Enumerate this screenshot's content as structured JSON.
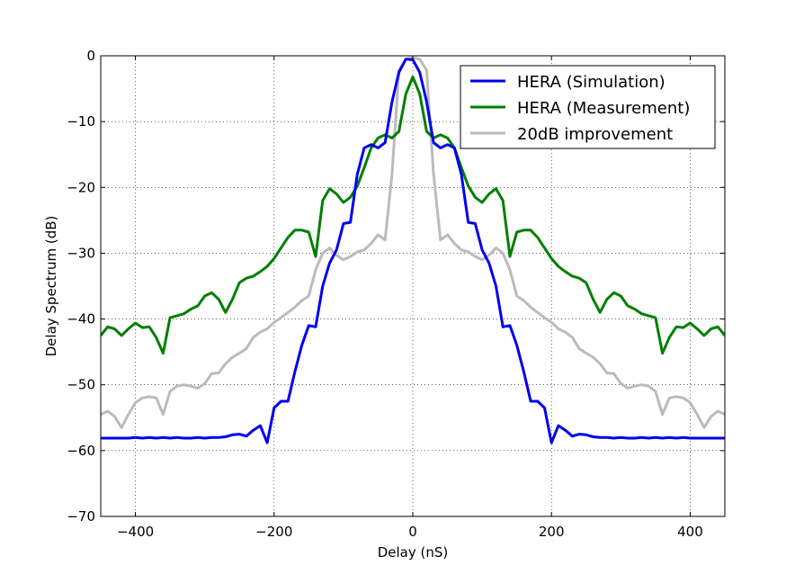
{
  "chart_data": {
    "type": "line",
    "title": "",
    "xlabel": "Delay (nS)",
    "ylabel": "Delay Spectrum (dB)",
    "xlim": [
      -450,
      450
    ],
    "ylim": [
      -70,
      0
    ],
    "xticks": [
      -400,
      -200,
      0,
      200,
      400
    ],
    "xtick_labels": [
      "−400",
      "−200",
      "0",
      "200",
      "400"
    ],
    "yticks": [
      0,
      -10,
      -20,
      -30,
      -40,
      -50,
      -60,
      -70
    ],
    "ytick_labels": [
      "0",
      "−10",
      "−20",
      "−30",
      "−40",
      "−50",
      "−60",
      "−70"
    ],
    "grid": true,
    "grid_style": "dotted",
    "legend_position": "top-right",
    "series": [
      {
        "name": "HERA (Simulation)",
        "color": "#0000ee",
        "x": [
          -450,
          -440,
          -430,
          -420,
          -410,
          -400,
          -390,
          -380,
          -370,
          -360,
          -350,
          -340,
          -330,
          -320,
          -310,
          -300,
          -290,
          -280,
          -270,
          -260,
          -250,
          -240,
          -230,
          -220,
          -210,
          -200,
          -190,
          -180,
          -170,
          -160,
          -150,
          -140,
          -130,
          -120,
          -110,
          -100,
          -90,
          -80,
          -70,
          -60,
          -50,
          -40,
          -30,
          -20,
          -10,
          0,
          10,
          20,
          30,
          40,
          50,
          60,
          70,
          80,
          90,
          100,
          110,
          120,
          130,
          140,
          150,
          160,
          170,
          180,
          190,
          200,
          210,
          220,
          230,
          240,
          250,
          260,
          270,
          280,
          290,
          300,
          310,
          320,
          330,
          340,
          350,
          360,
          370,
          380,
          390,
          400,
          410,
          420,
          430,
          440,
          450
        ],
        "y": [
          -58.1,
          -58.1,
          -58.1,
          -58.1,
          -58.1,
          -58.0,
          -58.1,
          -58.0,
          -58.1,
          -58.0,
          -58.1,
          -58.0,
          -58.1,
          -58.1,
          -58.0,
          -58.1,
          -58.0,
          -58.0,
          -57.9,
          -57.6,
          -57.5,
          -57.8,
          -56.9,
          -56.2,
          -58.8,
          -53.5,
          -52.5,
          -52.5,
          -48.0,
          -44.0,
          -41.0,
          -41.2,
          -35.0,
          -31.5,
          -29.5,
          -25.5,
          -25.3,
          -18.0,
          -14.0,
          -13.5,
          -14.0,
          -13.2,
          -7.0,
          -2.5,
          -0.5,
          -0.6,
          -2.5,
          -7.0,
          -13.2,
          -14.0,
          -13.5,
          -14.0,
          -18.0,
          -25.3,
          -25.5,
          -29.5,
          -31.5,
          -35.0,
          -41.2,
          -41.0,
          -44.0,
          -48.0,
          -52.5,
          -52.5,
          -53.5,
          -58.8,
          -56.2,
          -56.9,
          -57.8,
          -57.5,
          -57.6,
          -57.9,
          -58.0,
          -58.0,
          -58.1,
          -58.0,
          -58.1,
          -58.1,
          -58.0,
          -58.1,
          -58.0,
          -58.1,
          -58.0,
          -58.1,
          -58.0,
          -58.1,
          -58.1,
          -58.1,
          -58.1,
          -58.1,
          -58.1
        ]
      },
      {
        "name": "HERA (Measurement)",
        "color": "#007f00",
        "x": [
          -450,
          -440,
          -430,
          -420,
          -410,
          -400,
          -390,
          -380,
          -370,
          -360,
          -350,
          -340,
          -330,
          -320,
          -310,
          -300,
          -290,
          -280,
          -270,
          -260,
          -250,
          -240,
          -230,
          -220,
          -210,
          -200,
          -190,
          -180,
          -170,
          -160,
          -150,
          -140,
          -130,
          -120,
          -110,
          -100,
          -90,
          -80,
          -70,
          -60,
          -50,
          -40,
          -30,
          -20,
          -10,
          0,
          10,
          20,
          30,
          40,
          50,
          60,
          70,
          80,
          90,
          100,
          110,
          120,
          130,
          140,
          150,
          160,
          170,
          180,
          190,
          200,
          210,
          220,
          230,
          240,
          250,
          260,
          270,
          280,
          290,
          300,
          310,
          320,
          330,
          340,
          350,
          360,
          370,
          380,
          390,
          400,
          410,
          420,
          430,
          440,
          450
        ],
        "y": [
          -42.5,
          -41.2,
          -41.5,
          -42.5,
          -41.5,
          -40.6,
          -41.3,
          -41.2,
          -42.8,
          -45.2,
          -39.8,
          -39.5,
          -39.2,
          -38.5,
          -38.0,
          -36.5,
          -36.0,
          -37.0,
          -39.0,
          -37.0,
          -34.5,
          -33.8,
          -33.5,
          -32.8,
          -32.0,
          -30.8,
          -29.2,
          -27.6,
          -26.5,
          -26.5,
          -26.8,
          -30.5,
          -22.0,
          -20.2,
          -21.0,
          -22.3,
          -21.5,
          -19.8,
          -17.0,
          -14.0,
          -12.5,
          -12.0,
          -12.5,
          -11.5,
          -5.8,
          -3.2,
          -5.8,
          -11.5,
          -12.5,
          -12.0,
          -12.5,
          -14.0,
          -17.0,
          -19.8,
          -21.5,
          -22.3,
          -21.0,
          -20.2,
          -22.0,
          -30.5,
          -26.8,
          -26.5,
          -26.5,
          -27.6,
          -29.2,
          -30.8,
          -32.0,
          -32.8,
          -33.5,
          -33.8,
          -34.5,
          -37.0,
          -39.0,
          -37.0,
          -36.0,
          -36.5,
          -38.0,
          -38.5,
          -39.2,
          -39.5,
          -39.8,
          -45.2,
          -42.8,
          -41.2,
          -41.3,
          -40.6,
          -41.5,
          -42.5,
          -41.5,
          -41.2,
          -42.5
        ]
      },
      {
        "name": "20dB improvement",
        "color": "#bbbbbb",
        "x": [
          -450,
          -440,
          -430,
          -420,
          -410,
          -400,
          -390,
          -380,
          -370,
          -360,
          -350,
          -340,
          -330,
          -320,
          -310,
          -300,
          -290,
          -280,
          -270,
          -260,
          -250,
          -240,
          -230,
          -220,
          -210,
          -200,
          -190,
          -180,
          -170,
          -160,
          -150,
          -140,
          -130,
          -120,
          -110,
          -100,
          -90,
          -80,
          -70,
          -60,
          -50,
          -40,
          -30,
          -20,
          -10,
          0,
          10,
          20,
          30,
          40,
          50,
          60,
          70,
          80,
          90,
          100,
          110,
          120,
          130,
          140,
          150,
          160,
          170,
          180,
          190,
          200,
          210,
          220,
          230,
          240,
          250,
          260,
          270,
          280,
          290,
          300,
          310,
          320,
          330,
          340,
          350,
          360,
          370,
          380,
          390,
          400,
          410,
          420,
          430,
          440,
          450
        ],
        "y": [
          -54.5,
          -54.0,
          -54.8,
          -56.5,
          -54.5,
          -52.7,
          -52.0,
          -51.8,
          -52.0,
          -54.5,
          -51.0,
          -50.2,
          -50.0,
          -50.2,
          -50.5,
          -49.8,
          -48.3,
          -48.2,
          -46.8,
          -45.8,
          -45.2,
          -44.5,
          -42.8,
          -42.0,
          -41.5,
          -40.5,
          -39.8,
          -39.0,
          -38.2,
          -37.2,
          -36.5,
          -32.5,
          -30.0,
          -29.2,
          -30.3,
          -31.0,
          -30.5,
          -29.8,
          -29.5,
          -28.5,
          -27.2,
          -28.0,
          -18.0,
          -2.2,
          -0.5,
          -0.3,
          -0.5,
          -2.2,
          -18.0,
          -28.0,
          -27.2,
          -28.5,
          -29.5,
          -29.8,
          -30.5,
          -31.0,
          -30.3,
          -29.2,
          -30.0,
          -32.5,
          -36.5,
          -37.2,
          -38.2,
          -39.0,
          -39.8,
          -40.5,
          -41.5,
          -42.0,
          -42.8,
          -44.5,
          -45.2,
          -45.8,
          -46.8,
          -48.2,
          -48.3,
          -49.8,
          -50.5,
          -50.2,
          -50.0,
          -50.2,
          -51.0,
          -54.5,
          -52.0,
          -51.8,
          -52.0,
          -52.7,
          -54.5,
          -56.5,
          -54.8,
          -54.0,
          -54.5
        ]
      }
    ]
  }
}
